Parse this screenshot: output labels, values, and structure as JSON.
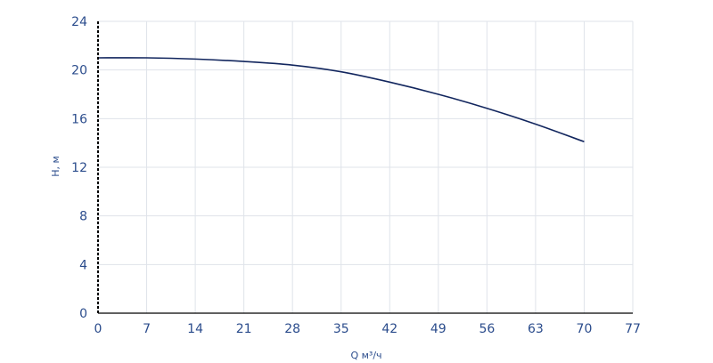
{
  "chart_data": {
    "type": "line",
    "xlabel": "Q м³/ч",
    "ylabel": "H, м",
    "xlim": [
      0,
      77
    ],
    "ylim": [
      0,
      24
    ],
    "x_ticks": [
      "0",
      "7",
      "14",
      "21",
      "28",
      "35",
      "42",
      "49",
      "56",
      "63",
      "70",
      "77"
    ],
    "y_ticks": [
      "0",
      "4",
      "8",
      "12",
      "16",
      "20",
      "24"
    ],
    "grid": true,
    "line_color": "#12265e",
    "axis_color": "#000000",
    "label_color": "#2b4c8c",
    "series": [
      {
        "x": [
          0,
          7,
          14,
          21,
          28,
          35,
          42,
          49,
          56,
          63,
          70
        ],
        "values": [
          21.0,
          21.0,
          20.9,
          20.7,
          20.4,
          19.85,
          19.0,
          18.0,
          16.85,
          15.55,
          14.1
        ]
      }
    ]
  }
}
